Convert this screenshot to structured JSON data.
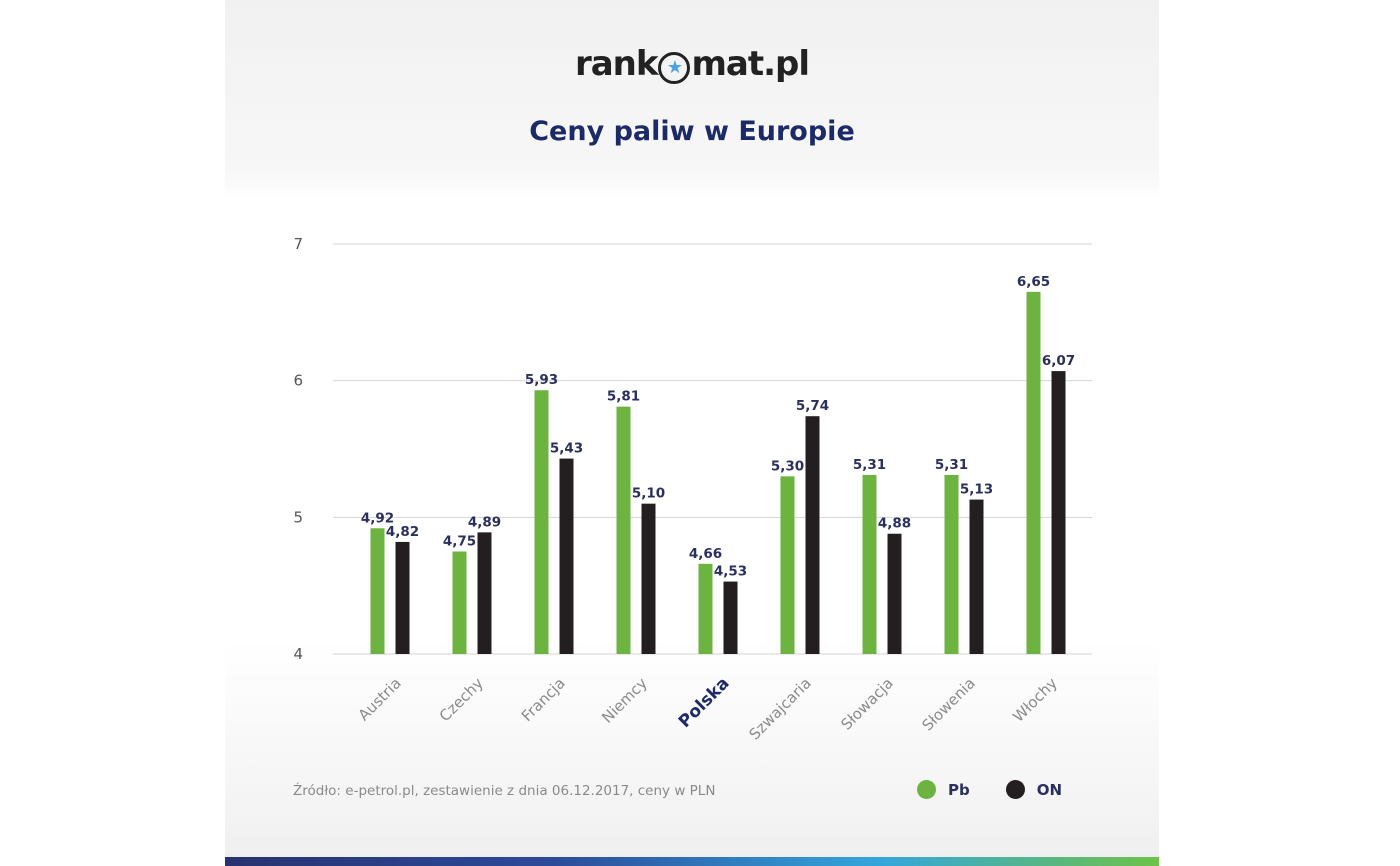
{
  "brand": {
    "logo_left": "rank",
    "logo_star": "★",
    "logo_right": "mat.pl"
  },
  "header": {
    "title": "Ceny paliw w Europie"
  },
  "footer": {
    "source": "Źródło: e-petrol.pl, zestawienie z dnia 06.12.2017, ceny w PLN"
  },
  "colors": {
    "pb": "#6db33f",
    "on": "#231f20",
    "title": "#1c2b68",
    "value_label": "#2a2f5e",
    "highlight_category": "#1c2b68"
  },
  "chart_data": {
    "type": "bar",
    "title": "Ceny paliw w Europie",
    "xlabel": "",
    "ylabel": "",
    "ylim": [
      4,
      7
    ],
    "yticks": [
      4,
      5,
      6,
      7
    ],
    "grid": true,
    "legend_position": "bottom-right",
    "highlighted_category": "Polska",
    "categories": [
      "Austria",
      "Czechy",
      "Francja",
      "Niemcy",
      "Polska",
      "Szwajcaria",
      "Słowacja",
      "Słowenia",
      "Włochy"
    ],
    "series": [
      {
        "name": "Pb",
        "values": [
          4.92,
          4.75,
          5.93,
          5.81,
          4.66,
          5.3,
          5.31,
          5.31,
          6.65
        ],
        "labels": [
          "4,92",
          "4,75",
          "5,93",
          "5,81",
          "4,66",
          "5,30",
          "5,31",
          "5,31",
          "6,65"
        ]
      },
      {
        "name": "ON",
        "values": [
          4.82,
          4.89,
          5.43,
          5.1,
          4.53,
          5.74,
          4.88,
          5.13,
          6.07
        ],
        "labels": [
          "4,82",
          "4,89",
          "5,43",
          "5,10",
          "4,53",
          "5,74",
          "4,88",
          "5,13",
          "6,07"
        ]
      }
    ]
  }
}
